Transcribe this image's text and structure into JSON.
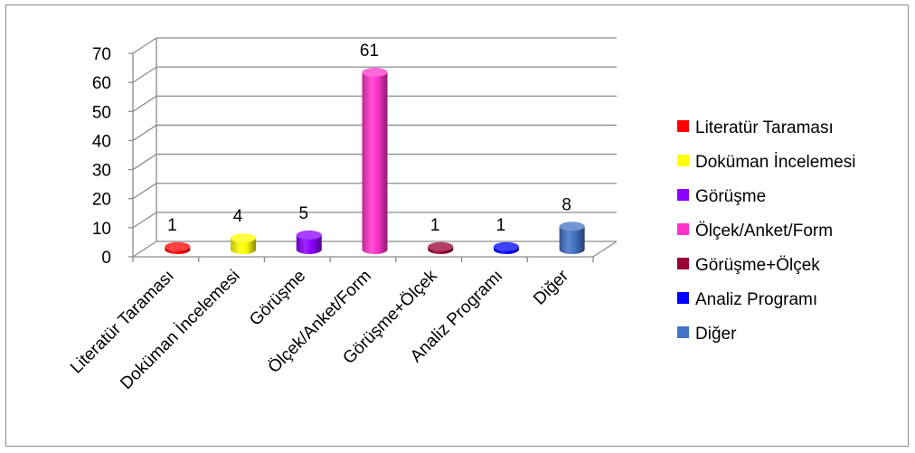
{
  "chart_data": {
    "type": "bar",
    "title": "",
    "xlabel": "",
    "ylabel": "",
    "ylim": [
      0,
      70
    ],
    "yticks": [
      0,
      10,
      20,
      30,
      40,
      50,
      60,
      70
    ],
    "grid": true,
    "legend_position": "right",
    "categories": [
      "Literatür Taraması",
      "Doküman İncelemesi",
      "Görüşme",
      "Ölçek/Anket/Form",
      "Görüşme+Ölçek",
      "Analiz Programı",
      "Diğer"
    ],
    "values": [
      1,
      4,
      5,
      61,
      1,
      1,
      8
    ],
    "data_labels": [
      "1",
      "4",
      "5",
      "61",
      "1",
      "1",
      "8"
    ],
    "colors": [
      "#ff0000",
      "#ffff00",
      "#8b00ff",
      "#ff33cc",
      "#990033",
      "#0000ff",
      "#4472c4"
    ]
  }
}
